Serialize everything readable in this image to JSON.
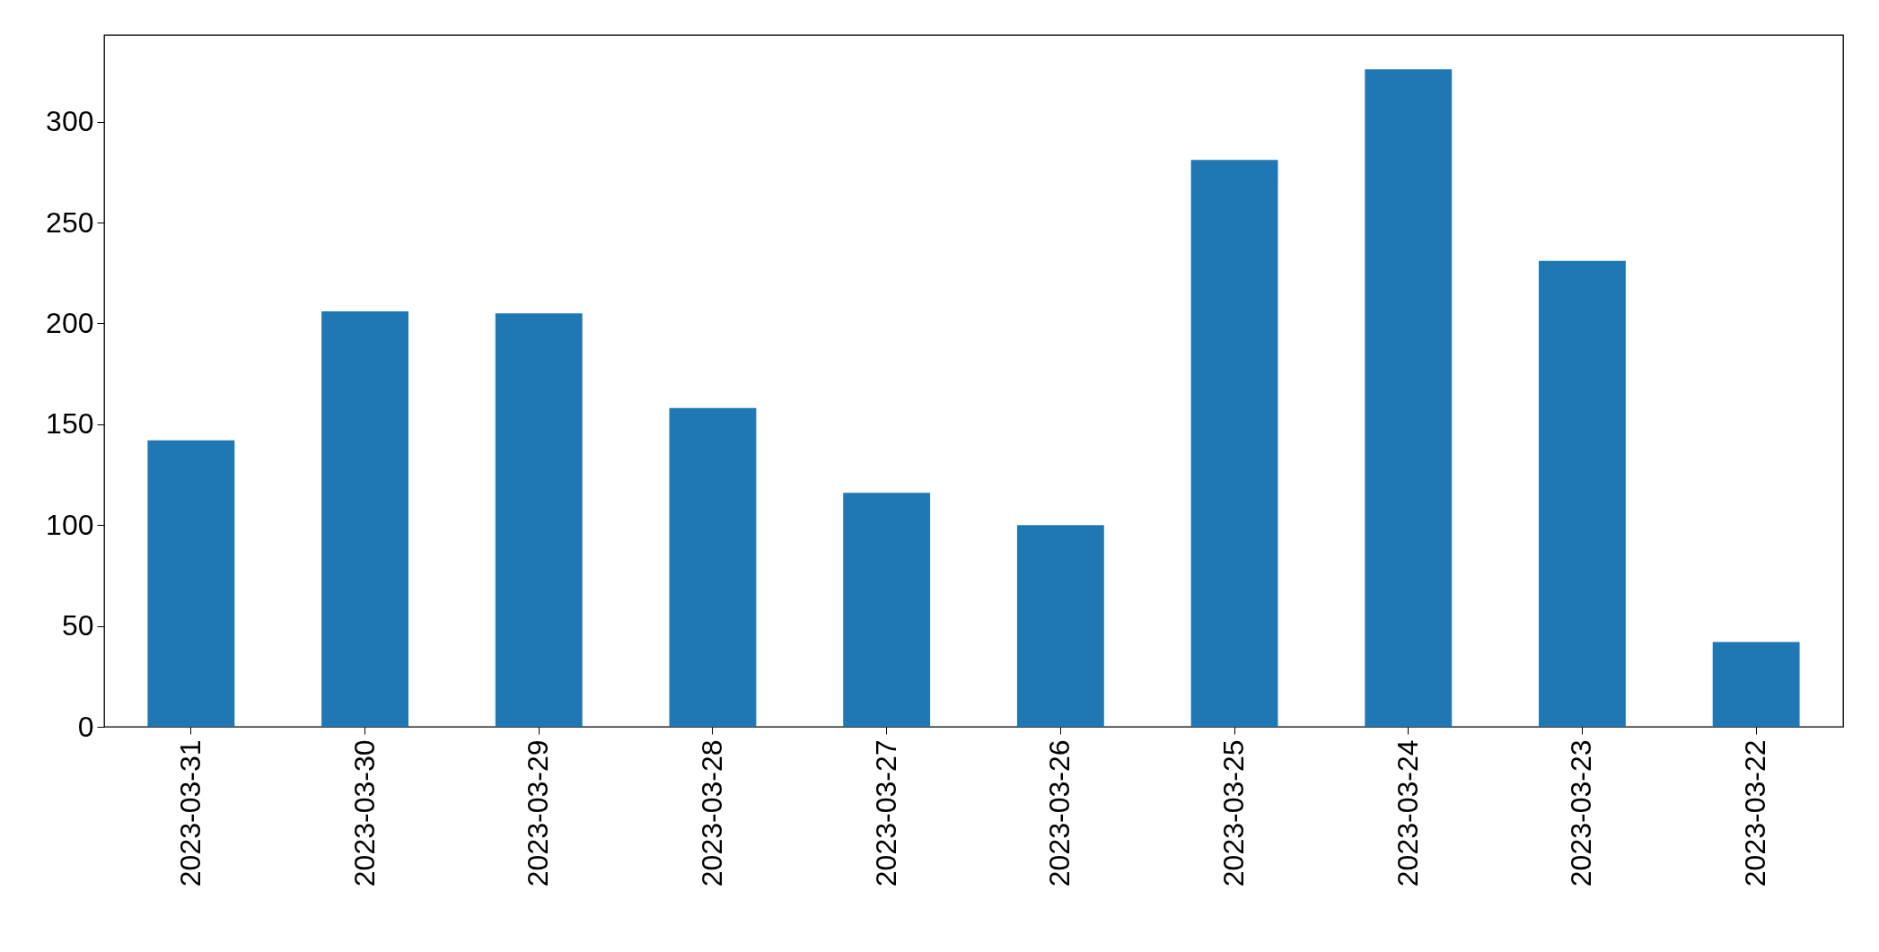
{
  "chart_data": {
    "type": "bar",
    "categories": [
      "2023-03-31",
      "2023-03-30",
      "2023-03-29",
      "2023-03-28",
      "2023-03-27",
      "2023-03-26",
      "2023-03-25",
      "2023-03-24",
      "2023-03-23",
      "2023-03-22"
    ],
    "values": [
      142,
      206,
      205,
      158,
      116,
      100,
      281,
      326,
      231,
      42
    ],
    "color": "#1f77b4",
    "ylim": [
      0,
      343
    ],
    "yticks": [
      0,
      50,
      100,
      150,
      200,
      250,
      300
    ],
    "grid": false
  }
}
